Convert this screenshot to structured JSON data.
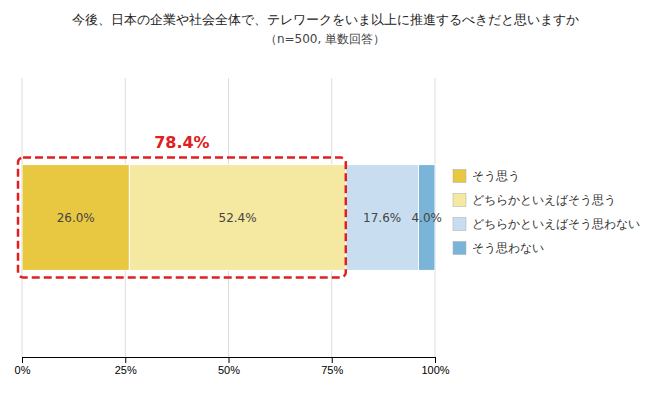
{
  "chart_data": {
    "type": "bar",
    "orientation": "horizontal",
    "stacked": true,
    "title": "今後、日本の企業や社会全体で、テレワークをいま以上に推進するべきだと思いますか",
    "subtitle": "（n=500, 単数回答）",
    "categories": [
      null
    ],
    "series": [
      {
        "name": "そう思う",
        "color": "#e8c840",
        "values": [
          26.0
        ],
        "value_labels": [
          "26.0%"
        ]
      },
      {
        "name": "どちらかといえばそう思う",
        "color": "#f5e8a0",
        "values": [
          52.4
        ],
        "value_labels": [
          "52.4%"
        ]
      },
      {
        "name": "どちらかといえばそう思わない",
        "color": "#c8ddf0",
        "values": [
          17.6
        ],
        "value_labels": [
          "17.6%"
        ]
      },
      {
        "name": "そう思わない",
        "color": "#7ab4d8",
        "values": [
          4.0
        ],
        "value_labels": [
          "4.0%"
        ]
      }
    ],
    "annotations": [
      {
        "text": "78.4%",
        "value": 78.4,
        "color": "#e02020"
      }
    ],
    "xlim": [
      0,
      100
    ],
    "xticks": [
      {
        "value": 0,
        "label": "0%"
      },
      {
        "value": 25,
        "label": "25%"
      },
      {
        "value": 50,
        "label": "50%"
      },
      {
        "value": 75,
        "label": "75%"
      },
      {
        "value": 100,
        "label": "100%"
      }
    ],
    "grid": true,
    "legend": "right",
    "data_labels": true,
    "tick_labels": "x"
  }
}
